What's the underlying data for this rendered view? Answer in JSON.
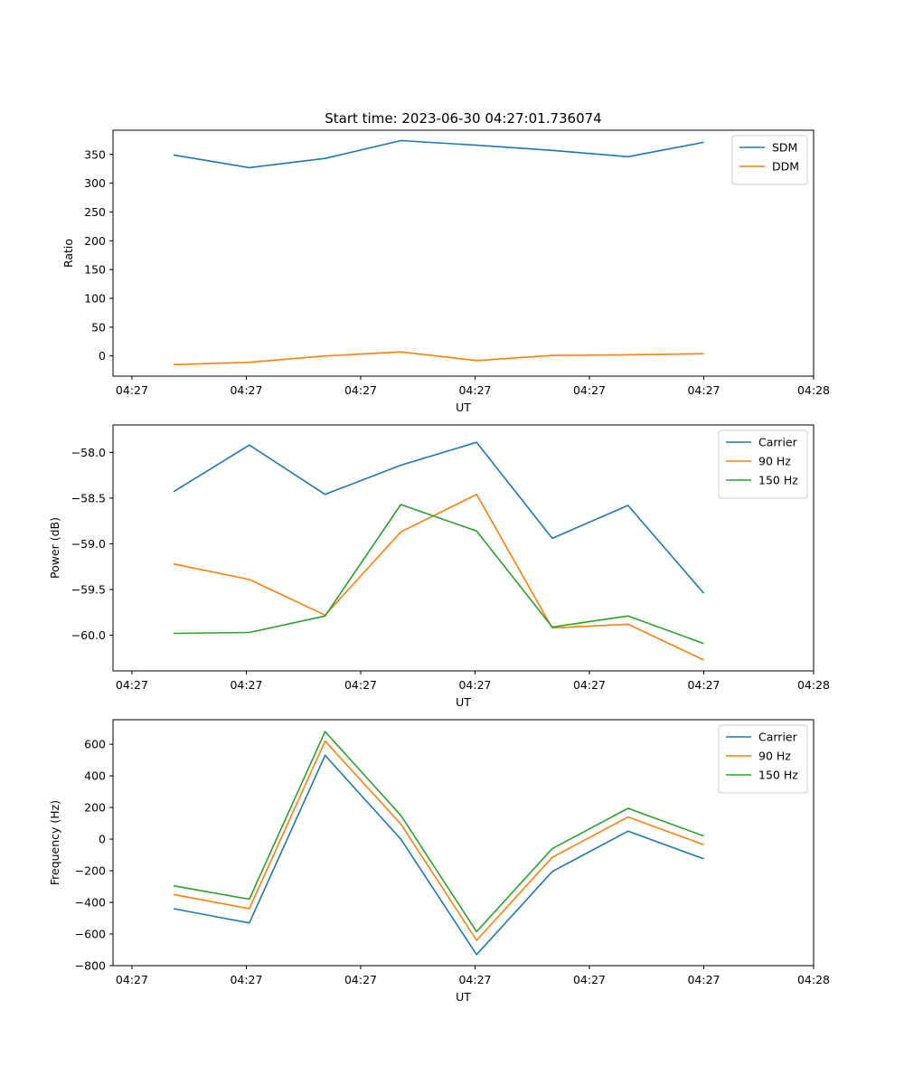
{
  "figure": {
    "title": "Start time: 2023-06-30 04:27:01.736074"
  },
  "chart_data": [
    {
      "type": "line",
      "title": "Start time: 2023-06-30 04:27:01.736074",
      "xlabel": "UT",
      "ylabel": "Ratio",
      "x": [
        1,
        2,
        3,
        4,
        5,
        6,
        7,
        8
      ],
      "xlim": [
        0.2,
        9.45
      ],
      "x_ticks": [
        0.45,
        1.96,
        3.47,
        4.98,
        6.49,
        8.0,
        9.45
      ],
      "x_tick_labels": [
        "04:27",
        "04:27",
        "04:27",
        "04:27",
        "04:27",
        "04:27",
        "04:28"
      ],
      "ylim": [
        -35,
        392
      ],
      "y_ticks": [
        0,
        50,
        100,
        150,
        200,
        250,
        300,
        350
      ],
      "y_tick_labels": [
        "0",
        "50",
        "100",
        "150",
        "200",
        "250",
        "300",
        "350"
      ],
      "legend": "top-right",
      "grid": false,
      "series": [
        {
          "name": "SDM",
          "color": "#1f77b4",
          "values": [
            349,
            327,
            343,
            374,
            366,
            357,
            346,
            371
          ]
        },
        {
          "name": "DDM",
          "color": "#ff7f0e",
          "values": [
            -15,
            -11,
            0,
            7,
            -8,
            1,
            2,
            4
          ]
        }
      ]
    },
    {
      "type": "line",
      "xlabel": "UT",
      "ylabel": "Power (dB)",
      "x": [
        1,
        2,
        3,
        4,
        5,
        6,
        7,
        8
      ],
      "xlim": [
        0.2,
        9.45
      ],
      "x_ticks": [
        0.45,
        1.96,
        3.47,
        4.98,
        6.49,
        8.0,
        9.45
      ],
      "x_tick_labels": [
        "04:27",
        "04:27",
        "04:27",
        "04:27",
        "04:27",
        "04:27",
        "04:28"
      ],
      "ylim": [
        -60.39,
        -57.7
      ],
      "y_ticks": [
        -60.0,
        -59.5,
        -59.0,
        -58.5,
        -58.0
      ],
      "y_tick_labels": [
        "−60.0",
        "−59.5",
        "−59.0",
        "−58.5",
        "−58.0"
      ],
      "legend": "top-right",
      "grid": false,
      "series": [
        {
          "name": "Carrier",
          "color": "#1f77b4",
          "values": [
            -58.43,
            -57.92,
            -58.46,
            -58.14,
            -57.89,
            -58.94,
            -58.58,
            -59.54
          ]
        },
        {
          "name": "90 Hz",
          "color": "#ff7f0e",
          "values": [
            -59.22,
            -59.39,
            -59.78,
            -58.87,
            -58.46,
            -59.92,
            -59.88,
            -60.27
          ]
        },
        {
          "name": "150 Hz",
          "color": "#2ca02c",
          "values": [
            -59.98,
            -59.97,
            -59.79,
            -58.57,
            -58.86,
            -59.91,
            -59.79,
            -60.09
          ]
        }
      ]
    },
    {
      "type": "line",
      "xlabel": "UT",
      "ylabel": "Frequency (Hz)",
      "x": [
        1,
        2,
        3,
        4,
        5,
        6,
        7,
        8
      ],
      "xlim": [
        0.2,
        9.45
      ],
      "x_ticks": [
        0.45,
        1.96,
        3.47,
        4.98,
        6.49,
        8.0,
        9.45
      ],
      "x_tick_labels": [
        "04:27",
        "04:27",
        "04:27",
        "04:27",
        "04:27",
        "04:27",
        "04:28"
      ],
      "ylim": [
        -800,
        755
      ],
      "y_ticks": [
        -800,
        -600,
        -400,
        -200,
        0,
        200,
        400,
        600
      ],
      "y_tick_labels": [
        "−800",
        "−600",
        "−400",
        "−200",
        "0",
        "200",
        "400",
        "600"
      ],
      "legend": "top-right",
      "grid": false,
      "series": [
        {
          "name": "Carrier",
          "color": "#1f77b4",
          "values": [
            -440,
            -530,
            530,
            0,
            -730,
            -205,
            50,
            -125
          ]
        },
        {
          "name": "90 Hz",
          "color": "#ff7f0e",
          "values": [
            -350,
            -440,
            620,
            95,
            -640,
            -115,
            140,
            -35
          ]
        },
        {
          "name": "150 Hz",
          "color": "#2ca02c",
          "values": [
            -295,
            -380,
            680,
            150,
            -585,
            -60,
            195,
            20
          ]
        }
      ]
    }
  ]
}
